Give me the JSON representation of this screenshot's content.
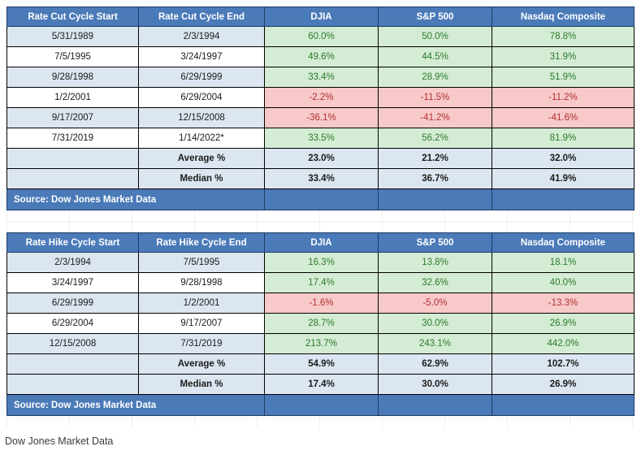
{
  "cut_table": {
    "headers": [
      "Rate Cut Cycle Start",
      "Rate Cut Cycle End",
      "DJIA",
      "S&P 500",
      "Nasdaq Composite"
    ],
    "rows": [
      {
        "start": "5/31/1989",
        "end": "2/3/1994",
        "djia": "60.0%",
        "sp500": "50.0%",
        "nasdaq": "78.8%",
        "djia_status": "pos",
        "sp500_status": "pos",
        "nasdaq_status": "pos"
      },
      {
        "start": "7/5/1995",
        "end": "3/24/1997",
        "djia": "49.6%",
        "sp500": "44.5%",
        "nasdaq": "31.9%",
        "djia_status": "pos",
        "sp500_status": "pos",
        "nasdaq_status": "pos"
      },
      {
        "start": "9/28/1998",
        "end": "6/29/1999",
        "djia": "33.4%",
        "sp500": "28.9%",
        "nasdaq": "51.9%",
        "djia_status": "pos",
        "sp500_status": "pos",
        "nasdaq_status": "pos"
      },
      {
        "start": "1/2/2001",
        "end": "6/29/2004",
        "djia": "-2.2%",
        "sp500": "-11.5%",
        "nasdaq": "-11.2%",
        "djia_status": "neg",
        "sp500_status": "neg",
        "nasdaq_status": "neg"
      },
      {
        "start": "9/17/2007",
        "end": "12/15/2008",
        "djia": "-36.1%",
        "sp500": "-41.2%",
        "nasdaq": "-41.6%",
        "djia_status": "neg",
        "sp500_status": "neg",
        "nasdaq_status": "neg"
      },
      {
        "start": "7/31/2019",
        "end": "1/14/2022*",
        "djia": "33.5%",
        "sp500": "56.2%",
        "nasdaq": "81.9%",
        "djia_status": "pos",
        "sp500_status": "pos",
        "nasdaq_status": "pos"
      }
    ],
    "average": {
      "label": "Average %",
      "djia": "23.0%",
      "sp500": "21.2%",
      "nasdaq": "32.0%"
    },
    "median": {
      "label": "Median %",
      "djia": "33.4%",
      "sp500": "36.7%",
      "nasdaq": "41.9%"
    },
    "source": "Source: Dow Jones Market Data"
  },
  "hike_table": {
    "headers": [
      "Rate Hike Cycle Start",
      "Rate Hike Cycle End",
      "DJIA",
      "S&P 500",
      "Nasdaq Composite"
    ],
    "rows": [
      {
        "start": "2/3/1994",
        "end": "7/5/1995",
        "djia": "16.3%",
        "sp500": "13.8%",
        "nasdaq": "18.1%",
        "djia_status": "pos",
        "sp500_status": "pos",
        "nasdaq_status": "pos"
      },
      {
        "start": "3/24/1997",
        "end": "9/28/1998",
        "djia": "17.4%",
        "sp500": "32.6%",
        "nasdaq": "40.0%",
        "djia_status": "pos",
        "sp500_status": "pos",
        "nasdaq_status": "pos"
      },
      {
        "start": "6/29/1999",
        "end": "1/2/2001",
        "djia": "-1.6%",
        "sp500": "-5.0%",
        "nasdaq": "-13.3%",
        "djia_status": "neg",
        "sp500_status": "neg",
        "nasdaq_status": "neg"
      },
      {
        "start": "6/29/2004",
        "end": "9/17/2007",
        "djia": "28.7%",
        "sp500": "30.0%",
        "nasdaq": "26.9%",
        "djia_status": "pos",
        "sp500_status": "pos",
        "nasdaq_status": "pos"
      },
      {
        "start": "12/15/2008",
        "end": "7/31/2019",
        "djia": "213.7%",
        "sp500": "243.1%",
        "nasdaq": "442.0%",
        "djia_status": "pos",
        "sp500_status": "pos",
        "nasdaq_status": "pos"
      }
    ],
    "average": {
      "label": "Average %",
      "djia": "54.9%",
      "sp500": "62.9%",
      "nasdaq": "102.7%"
    },
    "median": {
      "label": "Median %",
      "djia": "17.4%",
      "sp500": "30.0%",
      "nasdaq": "26.9%"
    },
    "source": "Source: Dow Jones Market Data"
  },
  "caption": "Dow Jones Market Data",
  "colors": {
    "header_blue": "#4a7ab8",
    "row_alt_blue": "#dce6f1",
    "positive_green": "#d4ecd4",
    "negative_red": "#f7c9c9"
  }
}
